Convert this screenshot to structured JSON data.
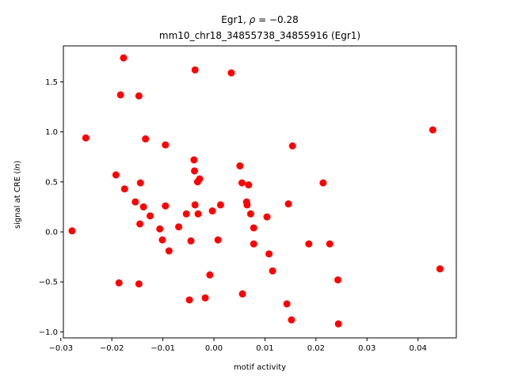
{
  "chart_data": {
    "type": "scatter",
    "title_line1_prefix": "Egr1, ",
    "title_line1_rho": "ρ",
    "title_line1_suffix": " = −0.28",
    "title_line2": "mm10_chr18_34855738_34855916 (Egr1)",
    "xlabel": "motif activity",
    "ylabel_prefix": "signal at CRE (",
    "ylabel_italic": "ln",
    "ylabel_suffix": ")",
    "xlim": [
      -0.0295,
      0.0475
    ],
    "ylim": [
      -1.06,
      1.86
    ],
    "xticks": [
      -0.03,
      -0.02,
      -0.01,
      0.0,
      0.01,
      0.02,
      0.03,
      0.04
    ],
    "xtick_labels": [
      "−0.03",
      "−0.02",
      "−0.01",
      "0.00",
      "0.01",
      "0.02",
      "0.03",
      "0.04"
    ],
    "yticks": [
      -1.0,
      -0.5,
      0.0,
      0.5,
      1.0,
      1.5
    ],
    "ytick_labels": [
      "−1.0",
      "−0.5",
      "0.0",
      "0.5",
      "1.0",
      "1.5"
    ],
    "marker_color": "#ff0000",
    "grid": false,
    "points": [
      {
        "x": -0.0278,
        "y": 0.01
      },
      {
        "x": -0.0251,
        "y": 0.94
      },
      {
        "x": -0.0192,
        "y": 0.57
      },
      {
        "x": -0.0186,
        "y": -0.51
      },
      {
        "x": -0.0183,
        "y": 1.37
      },
      {
        "x": -0.0177,
        "y": 1.74
      },
      {
        "x": -0.0175,
        "y": 0.43
      },
      {
        "x": -0.0154,
        "y": 0.3
      },
      {
        "x": -0.0147,
        "y": 1.36
      },
      {
        "x": -0.0147,
        "y": -0.52
      },
      {
        "x": -0.0145,
        "y": 0.08
      },
      {
        "x": -0.0144,
        "y": 0.49
      },
      {
        "x": -0.0138,
        "y": 0.25
      },
      {
        "x": -0.0134,
        "y": 0.93
      },
      {
        "x": -0.0125,
        "y": 0.16
      },
      {
        "x": -0.0106,
        "y": 0.03
      },
      {
        "x": -0.0101,
        "y": -0.08
      },
      {
        "x": -0.0095,
        "y": 0.87
      },
      {
        "x": -0.0095,
        "y": 0.26
      },
      {
        "x": -0.0088,
        "y": -0.19
      },
      {
        "x": -0.0069,
        "y": 0.05
      },
      {
        "x": -0.0054,
        "y": 0.18
      },
      {
        "x": -0.0048,
        "y": -0.68
      },
      {
        "x": -0.0045,
        "y": -0.09
      },
      {
        "x": -0.0039,
        "y": 0.72
      },
      {
        "x": -0.0038,
        "y": 0.61
      },
      {
        "x": -0.0037,
        "y": 1.62
      },
      {
        "x": -0.0037,
        "y": 0.27
      },
      {
        "x": -0.0032,
        "y": 0.5
      },
      {
        "x": -0.0031,
        "y": 0.18
      },
      {
        "x": -0.0028,
        "y": 0.53
      },
      {
        "x": -0.0017,
        "y": -0.66
      },
      {
        "x": -0.0008,
        "y": -0.43
      },
      {
        "x": -0.0003,
        "y": 0.21
      },
      {
        "x": 0.0008,
        "y": -0.08
      },
      {
        "x": 0.0013,
        "y": 0.27
      },
      {
        "x": 0.0034,
        "y": 1.59
      },
      {
        "x": 0.0051,
        "y": 0.66
      },
      {
        "x": 0.0055,
        "y": 0.49
      },
      {
        "x": 0.0056,
        "y": -0.62
      },
      {
        "x": 0.0064,
        "y": 0.3
      },
      {
        "x": 0.0065,
        "y": 0.27
      },
      {
        "x": 0.0068,
        "y": 0.47
      },
      {
        "x": 0.0072,
        "y": 0.18
      },
      {
        "x": 0.0078,
        "y": 0.04
      },
      {
        "x": 0.0078,
        "y": -0.12
      },
      {
        "x": 0.0104,
        "y": 0.15
      },
      {
        "x": 0.0108,
        "y": -0.22
      },
      {
        "x": 0.0115,
        "y": -0.39
      },
      {
        "x": 0.0143,
        "y": -0.72
      },
      {
        "x": 0.0146,
        "y": 0.28
      },
      {
        "x": 0.0152,
        "y": -0.88
      },
      {
        "x": 0.0154,
        "y": 0.86
      },
      {
        "x": 0.0186,
        "y": -0.12
      },
      {
        "x": 0.0214,
        "y": 0.49
      },
      {
        "x": 0.0227,
        "y": -0.12
      },
      {
        "x": 0.0243,
        "y": -0.48
      },
      {
        "x": 0.0244,
        "y": -0.92
      },
      {
        "x": 0.0429,
        "y": 1.02
      },
      {
        "x": 0.0443,
        "y": -0.37
      }
    ]
  }
}
